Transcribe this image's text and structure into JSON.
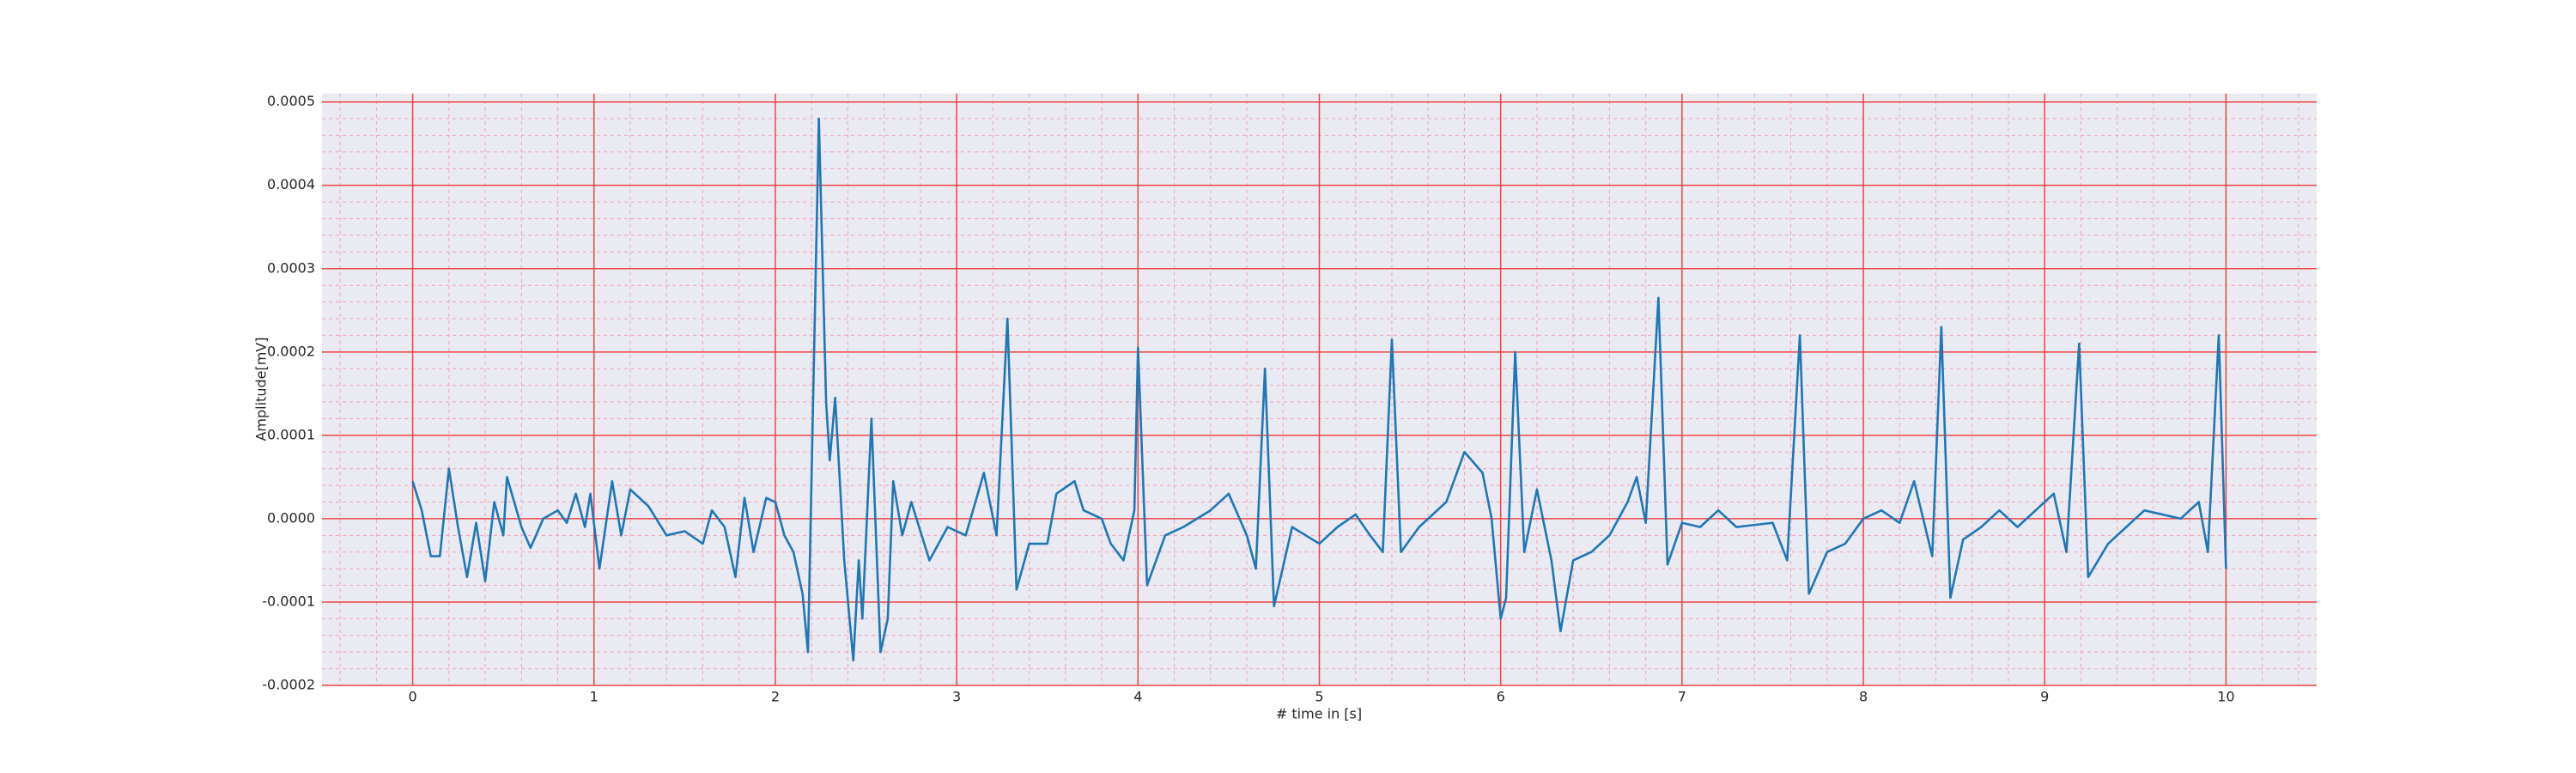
{
  "chart_data": {
    "type": "line",
    "xlabel": "# time in [s]",
    "ylabel": "Amplitude[mV]",
    "color": "#1f77b4",
    "grid": true,
    "minor_grid": true,
    "xlim": [
      -0.5,
      10.5
    ],
    "ylim": [
      -0.0002,
      0.00051
    ],
    "xticks": [
      0,
      1,
      2,
      3,
      4,
      5,
      6,
      7,
      8,
      9,
      10
    ],
    "yticks": [
      {
        "value": -0.0002,
        "label": "-0.0002"
      },
      {
        "value": -0.0001,
        "label": "-0.0001"
      },
      {
        "value": 0,
        "label": "0.0000"
      },
      {
        "value": 0.0001,
        "label": "0.0001"
      },
      {
        "value": 0.0002,
        "label": "0.0002"
      },
      {
        "value": 0.0003,
        "label": "0.0003"
      },
      {
        "value": 0.0004,
        "label": "0.0004"
      },
      {
        "value": 0.0005,
        "label": "0.0005"
      }
    ],
    "x": [
      0,
      0.05,
      0.1,
      0.15,
      0.2,
      0.25,
      0.3,
      0.35,
      0.4,
      0.45,
      0.5,
      0.52,
      0.6,
      0.65,
      0.72,
      0.8,
      0.85,
      0.9,
      0.95,
      0.98,
      1.03,
      1.1,
      1.15,
      1.2,
      1.3,
      1.4,
      1.5,
      1.6,
      1.65,
      1.72,
      1.78,
      1.83,
      1.88,
      1.95,
      2,
      2.05,
      2.1,
      2.15,
      2.18,
      2.24,
      2.28,
      2.3,
      2.33,
      2.38,
      2.43,
      2.46,
      2.48,
      2.53,
      2.58,
      2.62,
      2.65,
      2.7,
      2.75,
      2.85,
      2.95,
      3.05,
      3.15,
      3.22,
      3.28,
      3.33,
      3.4,
      3.5,
      3.55,
      3.65,
      3.7,
      3.8,
      3.85,
      3.92,
      3.98,
      4,
      4.05,
      4.15,
      4.25,
      4.4,
      4.5,
      4.6,
      4.65,
      4.7,
      4.75,
      4.85,
      5,
      5.1,
      5.2,
      5.28,
      5.35,
      5.4,
      5.45,
      5.55,
      5.7,
      5.8,
      5.9,
      5.95,
      6,
      6.03,
      6.08,
      6.13,
      6.2,
      6.28,
      6.33,
      6.4,
      6.5,
      6.6,
      6.7,
      6.75,
      6.8,
      6.87,
      6.92,
      7,
      7.1,
      7.2,
      7.3,
      7.5,
      7.58,
      7.65,
      7.7,
      7.8,
      7.9,
      8,
      8.1,
      8.2,
      8.28,
      8.38,
      8.43,
      8.48,
      8.55,
      8.65,
      8.75,
      8.85,
      8.95,
      9.05,
      9.12,
      9.19,
      9.24,
      9.35,
      9.45,
      9.55,
      9.65,
      9.75,
      9.85,
      9.9,
      9.96,
      10
    ],
    "values": [
      4.5e-05,
      1e-05,
      -4.5e-05,
      -4.5e-05,
      6e-05,
      -1e-05,
      -7e-05,
      -5e-06,
      -7.5e-05,
      2e-05,
      -2e-05,
      5e-05,
      -1e-05,
      -3.5e-05,
      0,
      1e-05,
      -5e-06,
      3e-05,
      -1e-05,
      3e-05,
      -6e-05,
      4.5e-05,
      -2e-05,
      3.5e-05,
      1.5e-05,
      -2e-05,
      -1.5e-05,
      -3e-05,
      1e-05,
      -1e-05,
      -7e-05,
      2.5e-05,
      -4e-05,
      2.5e-05,
      2e-05,
      -2e-05,
      -4e-05,
      -9e-05,
      -0.00016,
      0.00048,
      0.00014,
      7e-05,
      0.000145,
      -5e-05,
      -0.00017,
      -5e-05,
      -0.00012,
      0.00012,
      -0.00016,
      -0.00012,
      4.5e-05,
      -2e-05,
      2e-05,
      -5e-05,
      -1e-05,
      -2e-05,
      5.5e-05,
      -2e-05,
      0.00024,
      -8.5e-05,
      -3e-05,
      -3e-05,
      3e-05,
      4.5e-05,
      1e-05,
      0,
      -3e-05,
      -5e-05,
      1e-05,
      0.000205,
      -8e-05,
      -2e-05,
      -1e-05,
      1e-05,
      3e-05,
      -2e-05,
      -6e-05,
      0.00018,
      -0.000105,
      -1e-05,
      -3e-05,
      -1e-05,
      5e-06,
      -2e-05,
      -4e-05,
      0.000215,
      -4e-05,
      -1e-05,
      2e-05,
      8e-05,
      5.5e-05,
      0,
      -0.00012,
      -9.5e-05,
      0.0002,
      -4e-05,
      3.5e-05,
      -5e-05,
      -0.000135,
      -5e-05,
      -4e-05,
      -2e-05,
      2e-05,
      5e-05,
      -5e-06,
      0.000265,
      -5.5e-05,
      -5e-06,
      -1e-05,
      1e-05,
      -1e-05,
      -5e-06,
      -5e-05,
      0.00022,
      -9e-05,
      -4e-05,
      -3e-05,
      0,
      1e-05,
      -5e-06,
      4.5e-05,
      -4.5e-05,
      0.00023,
      -9.5e-05,
      -2.5e-05,
      -1e-05,
      1e-05,
      -1e-05,
      1e-05,
      3e-05,
      -4e-05,
      0.00021,
      -7e-05,
      -3e-05,
      -1e-05,
      1e-05,
      5e-06,
      0,
      2e-05,
      -4e-05,
      0.00022,
      -6e-05
    ]
  }
}
